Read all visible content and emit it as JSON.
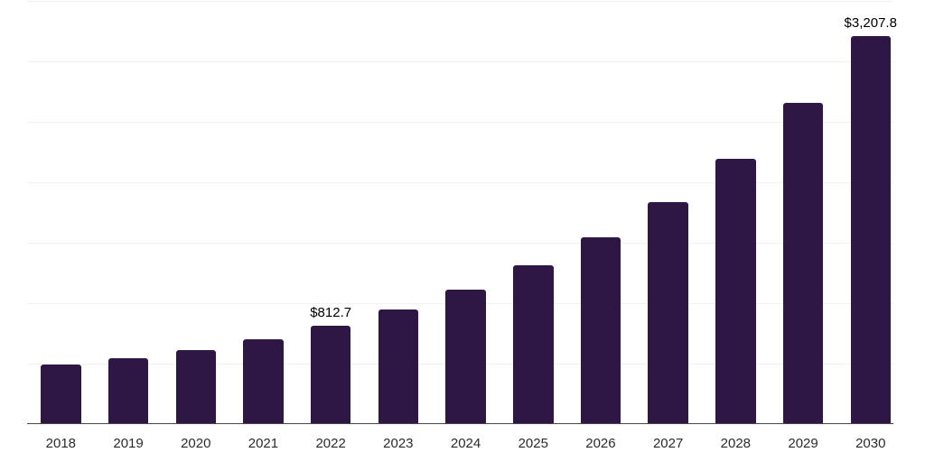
{
  "chart_data": {
    "type": "bar",
    "title": "",
    "xlabel": "",
    "ylabel": "",
    "categories": [
      "2018",
      "2019",
      "2020",
      "2021",
      "2022",
      "2023",
      "2024",
      "2025",
      "2026",
      "2027",
      "2028",
      "2029",
      "2030"
    ],
    "values": [
      490,
      545,
      612,
      698,
      812.7,
      948,
      1115,
      1310,
      1545,
      1836,
      2194,
      2656,
      3207.8
    ],
    "data_labels": [
      {
        "category": "2022",
        "text": "$812.7"
      },
      {
        "category": "2030",
        "text": "$3,207.8"
      }
    ],
    "ylim": [
      0,
      3500
    ],
    "gridline_step": 500,
    "grid": "horizontal-only",
    "legend": "none",
    "y_axis_tick_labels_visible": false,
    "colors": {
      "bar": "#2e1745",
      "gridline": "#f1f1f3",
      "axis_line": "#474747",
      "x_label_text": "#2b2b2b",
      "data_label_text": "#000000",
      "background": "#ffffff"
    }
  }
}
